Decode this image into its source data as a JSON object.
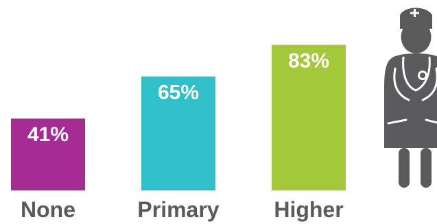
{
  "chart_data": {
    "type": "bar",
    "categories": [
      "None",
      "Primary",
      "Higher"
    ],
    "values": [
      41,
      65,
      83
    ],
    "value_labels": [
      "41%",
      "65%",
      "83%"
    ],
    "colors": [
      "#a42c93",
      "#30c0c9",
      "#a3c93a"
    ],
    "ylim": [
      0,
      100
    ],
    "grid": false,
    "legend": "none"
  },
  "icon": {
    "name": "nurse-icon",
    "color": "#5a5a5c"
  }
}
